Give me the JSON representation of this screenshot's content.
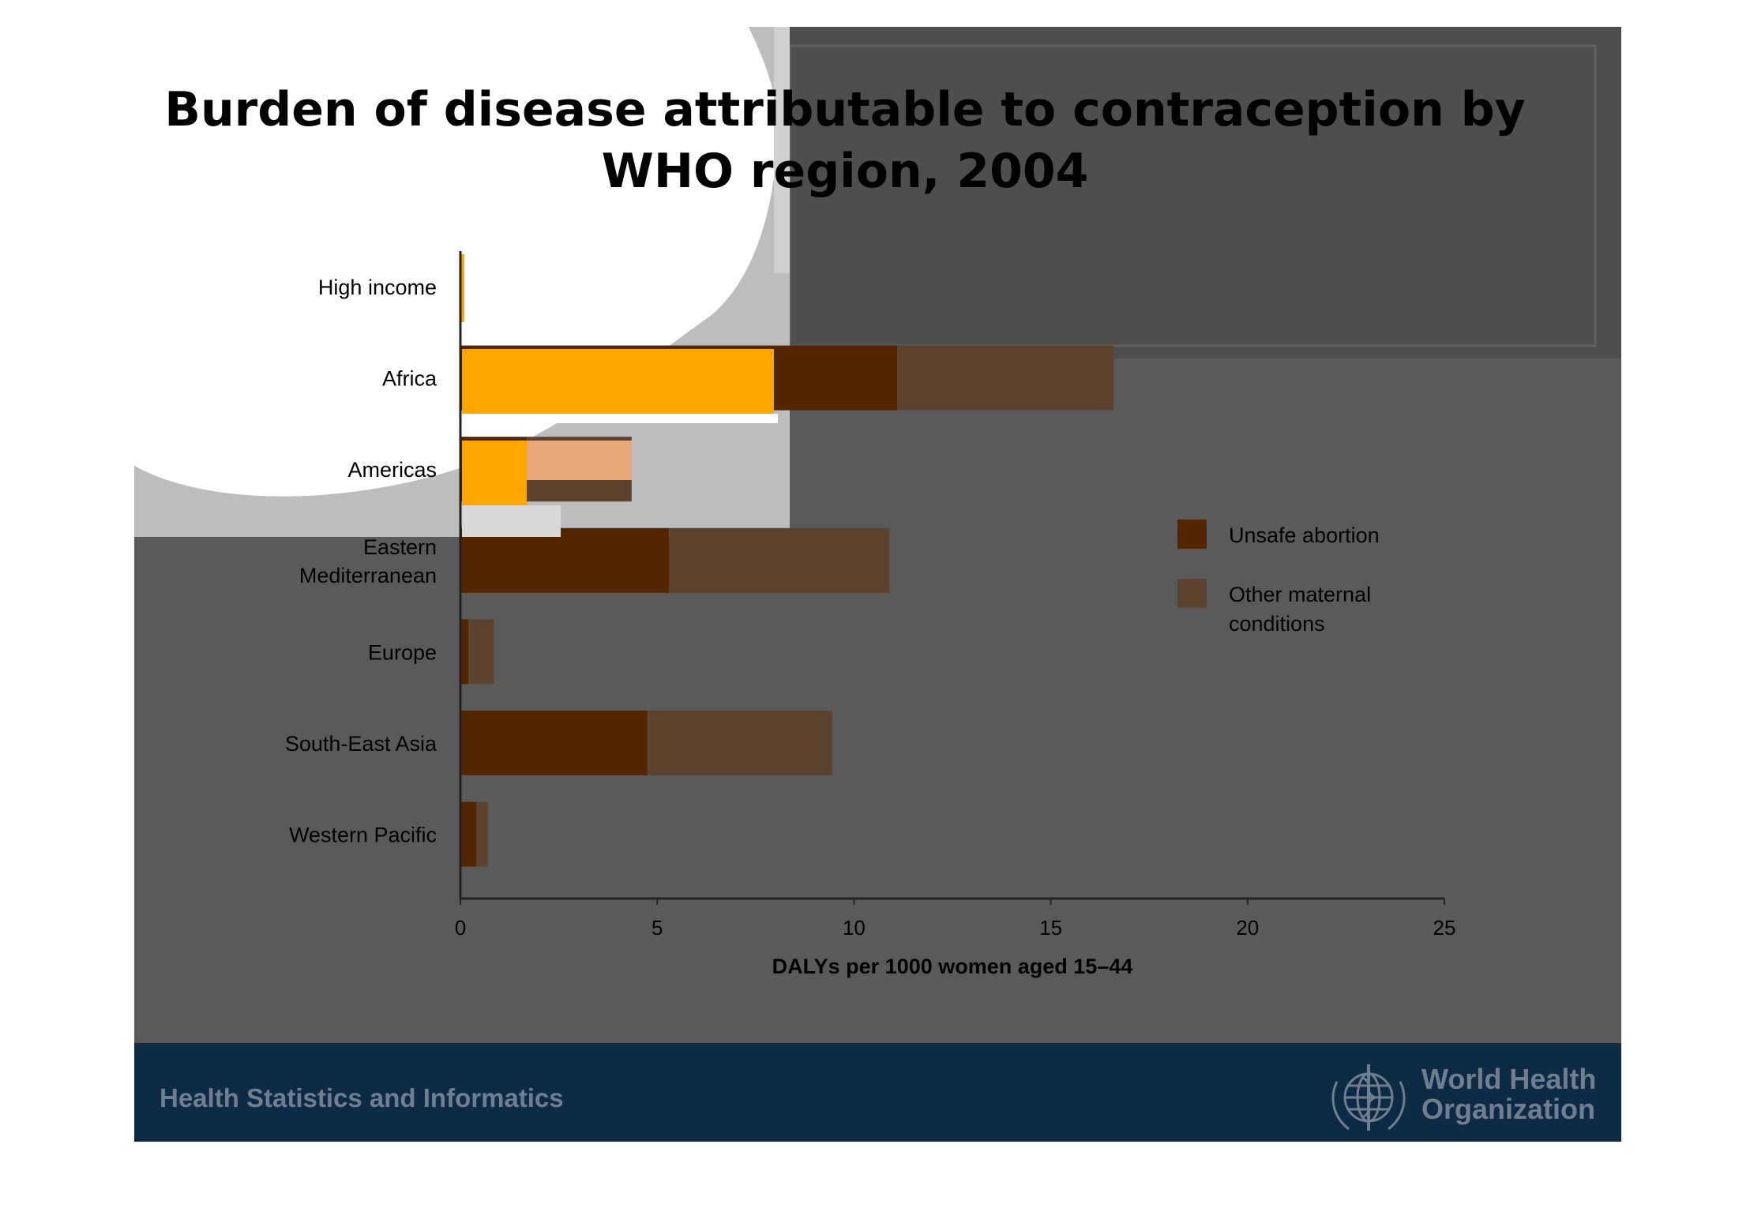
{
  "title_line1": "Burden of disease attributable to contraception by",
  "title_line2": "WHO region, 2004",
  "footer": {
    "left_text": "Health Statistics and Informatics",
    "org_name_line1": "World Health",
    "org_name_line2": "Organization",
    "logo_icon": "who-emblem-icon"
  },
  "colors": {
    "background": "#5a5a5a",
    "footer_band": "#0d2b45",
    "unsafe_abortion": "#522600",
    "other_maternal": "#5b4330",
    "highlight": "#ffa500"
  },
  "chart_data": {
    "type": "bar",
    "orientation": "horizontal",
    "stacked": true,
    "title": "Burden of disease attributable to contraception by WHO region, 2004",
    "xlabel": "DALYs per 1000 women aged 15–44",
    "ylabel": "",
    "xlim": [
      0,
      25
    ],
    "xticks": [
      0,
      5,
      10,
      15,
      20,
      25
    ],
    "categories": [
      "High income",
      "Africa",
      "Americas",
      "Eastern Mediterranean",
      "Europe",
      "South-East Asia",
      "Western Pacific"
    ],
    "category_labels": [
      [
        "High income"
      ],
      [
        "Africa"
      ],
      [
        "Americas"
      ],
      [
        "Eastern",
        "Mediterranean"
      ],
      [
        "Europe"
      ],
      [
        "South-East Asia"
      ],
      [
        "Western Pacific"
      ]
    ],
    "series": [
      {
        "name": "Unsafe abortion",
        "values": [
          0.05,
          11.1,
          1.7,
          5.3,
          0.2,
          4.75,
          0.4
        ],
        "color": "#522600"
      },
      {
        "name": "Other maternal conditions",
        "values": [
          0.05,
          5.5,
          2.65,
          5.6,
          0.65,
          4.7,
          0.3
        ],
        "color": "#5b4330"
      }
    ],
    "legend_entries": [
      [
        "Unsafe abortion"
      ],
      [
        "Other maternal",
        "conditions"
      ]
    ],
    "legend_position": "right",
    "grid": false
  }
}
